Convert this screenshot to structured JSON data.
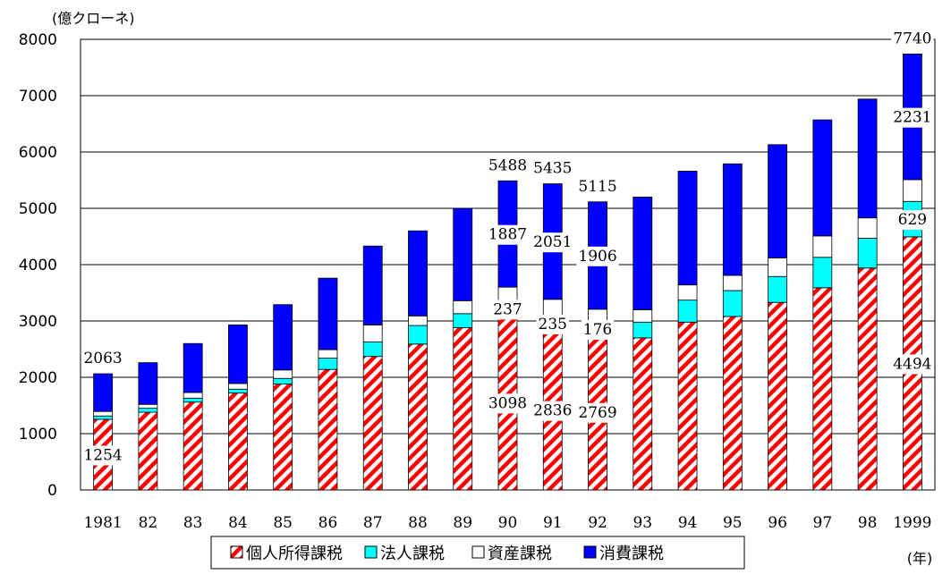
{
  "chart_data": {
    "type": "bar",
    "stacked": true,
    "y_unit": "(億クローネ)",
    "x_unit": "(年)",
    "ylim": [
      0,
      8000
    ],
    "yticks": [
      0,
      1000,
      2000,
      3000,
      4000,
      5000,
      6000,
      7000,
      8000
    ],
    "grid": true,
    "legend_position": "bottom",
    "categories": [
      "1981",
      "82",
      "83",
      "84",
      "85",
      "86",
      "87",
      "88",
      "89",
      "90",
      "91",
      "92",
      "93",
      "94",
      "95",
      "96",
      "97",
      "98",
      "1999"
    ],
    "series": [
      {
        "name": "個人所得課税",
        "color": "#ff0000",
        "pattern": "hatch",
        "values": [
          1254,
          1380,
          1560,
          1720,
          1880,
          2140,
          2370,
          2590,
          2880,
          3098,
          2836,
          2769,
          2700,
          2980,
          3080,
          3330,
          3590,
          3940,
          4494
        ]
      },
      {
        "name": "法人課税",
        "color": "#00ffff",
        "values": [
          60,
          70,
          70,
          70,
          100,
          200,
          260,
          330,
          250,
          237,
          235,
          176,
          280,
          390,
          460,
          460,
          540,
          530,
          629
        ]
      },
      {
        "name": "資産課税",
        "color": "#ffffff",
        "values": [
          80,
          70,
          100,
          100,
          150,
          150,
          300,
          170,
          230,
          266,
          313,
          264,
          220,
          270,
          270,
          330,
          380,
          360,
          386
        ]
      },
      {
        "name": "消費課税",
        "color": "#0000ff",
        "values": [
          669,
          740,
          870,
          1040,
          1160,
          1270,
          1400,
          1510,
          1640,
          1887,
          2051,
          1906,
          2000,
          2020,
          1980,
          2010,
          2060,
          2110,
          2231
        ]
      }
    ],
    "annotations": [
      {
        "category": "1981",
        "series": "total",
        "text": "2063"
      },
      {
        "category": "1981",
        "series": "個人所得課税",
        "text": "1254"
      },
      {
        "category": "90",
        "series": "total",
        "text": "5488"
      },
      {
        "category": "90",
        "series": "消費課税",
        "text": "1887"
      },
      {
        "category": "90",
        "series": "法人課税",
        "text": "237"
      },
      {
        "category": "90",
        "series": "個人所得課税",
        "text": "3098"
      },
      {
        "category": "91",
        "series": "total",
        "text": "5435"
      },
      {
        "category": "91",
        "series": "消費課税",
        "text": "2051"
      },
      {
        "category": "91",
        "series": "法人課税",
        "text": "235"
      },
      {
        "category": "91",
        "series": "個人所得課税",
        "text": "2836"
      },
      {
        "category": "92",
        "series": "total",
        "text": "5115"
      },
      {
        "category": "92",
        "series": "消費課税",
        "text": "1906"
      },
      {
        "category": "92",
        "series": "法人課税",
        "text": "176"
      },
      {
        "category": "92",
        "series": "個人所得課税",
        "text": "2769"
      },
      {
        "category": "1999",
        "series": "total",
        "text": "7740"
      },
      {
        "category": "1999",
        "series": "消費課税",
        "text": "2231"
      },
      {
        "category": "1999",
        "series": "法人課税",
        "text": "629"
      },
      {
        "category": "1999",
        "series": "個人所得課税",
        "text": "4494"
      }
    ]
  }
}
